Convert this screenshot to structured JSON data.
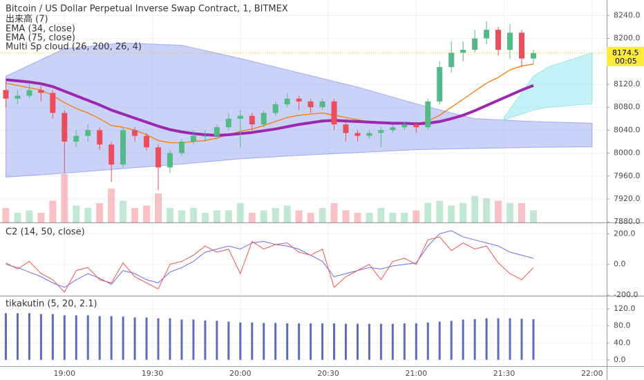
{
  "chart_data": [
    {
      "type": "candlestick",
      "title": "Bitcoin / US Dollar Perpetual Inverse Swap Contract, 1, BITMEX",
      "legend": [
        "出来高 (7)",
        "EMA (34, close)",
        "EMA (75, close)",
        "Multi Sp cloud (26, 200, 26, 4)"
      ],
      "x": [
        "18:40",
        "18:44",
        "18:48",
        "18:52",
        "18:56",
        "19:00",
        "19:04",
        "19:08",
        "19:12",
        "19:16",
        "19:20",
        "19:24",
        "19:28",
        "19:32",
        "19:36",
        "19:40",
        "19:44",
        "19:48",
        "19:52",
        "19:56",
        "20:00",
        "20:04",
        "20:08",
        "20:12",
        "20:16",
        "20:20",
        "20:24",
        "20:28",
        "20:32",
        "20:36",
        "20:40",
        "20:44",
        "20:48",
        "20:52",
        "20:56",
        "21:00",
        "21:04",
        "21:08",
        "21:12",
        "21:16",
        "21:20",
        "21:24",
        "21:28",
        "21:32",
        "21:36",
        "21:40"
      ],
      "open": [
        8110,
        8095,
        8100,
        8110,
        8105,
        8070,
        8020,
        8030,
        8040,
        8015,
        7980,
        8040,
        8030,
        8010,
        7975,
        8000,
        8020,
        8030,
        8030,
        8045,
        8060,
        8065,
        8050,
        8070,
        8085,
        8095,
        8090,
        8080,
        8090,
        8050,
        8035,
        8030,
        8035,
        8040,
        8045,
        8050,
        8045,
        8090,
        8150,
        8175,
        8180,
        8200,
        8215,
        8180,
        8210,
        8165
      ],
      "high": [
        8125,
        8110,
        8120,
        8120,
        8110,
        8075,
        8040,
        8050,
        8045,
        8020,
        8045,
        8045,
        8035,
        8015,
        8005,
        8025,
        8040,
        8040,
        8050,
        8070,
        8075,
        8070,
        8075,
        8090,
        8105,
        8100,
        8095,
        8095,
        8095,
        8055,
        8040,
        8040,
        8045,
        8050,
        8055,
        8055,
        8095,
        8160,
        8195,
        8195,
        8215,
        8230,
        8220,
        8225,
        8215,
        8180
      ],
      "low": [
        8080,
        8085,
        8095,
        8090,
        8060,
        7965,
        8010,
        8020,
        8005,
        7950,
        7975,
        8020,
        8005,
        7935,
        7965,
        7995,
        8015,
        8020,
        8025,
        8040,
        8010,
        8040,
        8045,
        8065,
        8080,
        8075,
        8070,
        8075,
        8040,
        8020,
        8020,
        8025,
        8010,
        8035,
        8040,
        8035,
        8040,
        8085,
        8140,
        8160,
        8175,
        8190,
        8170,
        8165,
        8150,
        8155
      ],
      "close": [
        8095,
        8100,
        8110,
        8105,
        8070,
        8020,
        8030,
        8040,
        8015,
        7980,
        8040,
        8030,
        8010,
        7975,
        8000,
        8020,
        8030,
        8030,
        8045,
        8060,
        8065,
        8050,
        8070,
        8085,
        8095,
        8090,
        8080,
        8090,
        8050,
        8035,
        8030,
        8035,
        8040,
        8045,
        8050,
        8045,
        8090,
        8150,
        8175,
        8180,
        8200,
        8215,
        8180,
        8210,
        8165,
        8174.5
      ],
      "volume": [
        30,
        20,
        25,
        20,
        45,
        100,
        35,
        30,
        40,
        70,
        45,
        30,
        35,
        60,
        30,
        25,
        30,
        20,
        25,
        25,
        40,
        20,
        25,
        30,
        35,
        25,
        20,
        30,
        40,
        25,
        20,
        20,
        30,
        20,
        20,
        25,
        40,
        45,
        35,
        40,
        55,
        50,
        45,
        40,
        40,
        25
      ],
      "up_color": "#53b987",
      "down_color": "#eb4d5c",
      "series": [
        {
          "color": "#f57c00",
          "values": [
            8122,
            8118,
            8114,
            8110,
            8100,
            8088,
            8078,
            8070,
            8060,
            8048,
            8045,
            8040,
            8032,
            8022,
            8018,
            8018,
            8020,
            8022,
            8026,
            8032,
            8038,
            8042,
            8048,
            8055,
            8062,
            8066,
            8068,
            8070,
            8066,
            8062,
            8058,
            8055,
            8053,
            8052,
            8052,
            8051,
            8056,
            8066,
            8080,
            8094,
            8108,
            8122,
            8132,
            8145,
            8152,
            8155
          ]
        },
        {
          "color": "#9c27b0",
          "values": [
            8128,
            8126,
            8124,
            8121,
            8116,
            8108,
            8100,
            8092,
            8084,
            8075,
            8068,
            8061,
            8054,
            8047,
            8041,
            8037,
            8034,
            8032,
            8031,
            8032,
            8034,
            8036,
            8039,
            8042,
            8046,
            8050,
            8053,
            8056,
            8057,
            8056,
            8055,
            8054,
            8053,
            8052,
            8052,
            8051,
            8052,
            8055,
            8060,
            8066,
            8074,
            8083,
            8092,
            8101,
            8110,
            8118
          ]
        }
      ],
      "clouds": [
        {
          "color": "#8c9cf0",
          "x": [
            "18:40",
            "19:00",
            "19:20",
            "19:40",
            "20:00",
            "20:20",
            "20:40",
            "21:00",
            "21:20",
            "21:40",
            "22:00"
          ],
          "upper": [
            8134,
            8182,
            8192,
            8188,
            8165,
            8140,
            8115,
            8086,
            8060,
            8055,
            8052
          ],
          "lower": [
            7958,
            7965,
            7973,
            7981,
            7990,
            7996,
            8001,
            8006,
            8008,
            8010,
            8011
          ]
        },
        {
          "color": "#7fe3ea",
          "x": [
            "21:30",
            "21:40",
            "21:45",
            "22:00"
          ],
          "upper": [
            8062,
            8134,
            8150,
            8175
          ],
          "lower": [
            8058,
            8075,
            8080,
            8086
          ]
        }
      ],
      "last_price": 8174.5,
      "countdown": "00:05",
      "xlim": [
        "18:38",
        "22:05"
      ],
      "xticks": [
        "19:00",
        "19:30",
        "20:00",
        "20:30",
        "21:00",
        "21:30",
        "22:00"
      ],
      "ylim": [
        7879,
        8267
      ],
      "yticks": [
        {
          "value": 7880,
          "label": "7880.0"
        },
        {
          "value": 7920,
          "label": "7920.0"
        },
        {
          "value": 7960,
          "label": "7960.0"
        },
        {
          "value": 8000,
          "label": "8000.0"
        },
        {
          "value": 8040,
          "label": "8040.0"
        },
        {
          "value": 8080,
          "label": "8080.0"
        },
        {
          "value": 8120,
          "label": "8120.0"
        },
        {
          "value": 8200,
          "label": "8200.0"
        },
        {
          "value": 8240,
          "label": "8240.0"
        }
      ]
    },
    {
      "type": "line",
      "title": "C2 (14, 50, close)",
      "x": [
        "18:40",
        "18:44",
        "18:48",
        "18:52",
        "18:56",
        "19:00",
        "19:04",
        "19:08",
        "19:12",
        "19:16",
        "19:20",
        "19:24",
        "19:28",
        "19:32",
        "19:36",
        "19:40",
        "19:44",
        "19:48",
        "19:52",
        "19:56",
        "20:00",
        "20:04",
        "20:08",
        "20:12",
        "20:16",
        "20:20",
        "20:24",
        "20:28",
        "20:32",
        "20:36",
        "20:40",
        "20:44",
        "20:48",
        "20:52",
        "20:56",
        "21:00",
        "21:04",
        "21:08",
        "21:12",
        "21:16",
        "21:20",
        "21:24",
        "21:28",
        "21:32",
        "21:36",
        "21:40"
      ],
      "series": [
        {
          "color": "#6a6cf5",
          "values": [
            0,
            -20,
            -50,
            -80,
            -120,
            -150,
            -100,
            -60,
            -90,
            -130,
            -40,
            -60,
            -100,
            -120,
            -50,
            -20,
            20,
            80,
            100,
            120,
            100,
            140,
            150,
            130,
            120,
            100,
            60,
            20,
            -80,
            -60,
            -40,
            -20,
            -30,
            -10,
            0,
            10,
            120,
            200,
            220,
            180,
            160,
            140,
            120,
            80,
            60,
            40
          ]
        },
        {
          "color": "#ef5350",
          "values": [
            10,
            -30,
            20,
            -60,
            -100,
            -180,
            -40,
            -20,
            -100,
            -120,
            10,
            -80,
            -120,
            -160,
            0,
            20,
            60,
            120,
            80,
            100,
            -60,
            150,
            100,
            130,
            140,
            80,
            60,
            100,
            -150,
            -80,
            -40,
            0,
            -100,
            20,
            40,
            0,
            160,
            180,
            90,
            140,
            100,
            120,
            10,
            -60,
            -100,
            -20
          ]
        }
      ],
      "ylim": [
        -204,
        269
      ],
      "yticks": [
        {
          "value": -200,
          "label": "-200.0"
        },
        {
          "value": 0,
          "label": "0.0"
        },
        {
          "value": 200,
          "label": "200.0"
        }
      ]
    },
    {
      "type": "bar",
      "title": "tikakutin (5, 20, 2.1)",
      "x": [
        "18:40",
        "18:44",
        "18:48",
        "18:52",
        "18:56",
        "19:00",
        "19:04",
        "19:08",
        "19:12",
        "19:16",
        "19:20",
        "19:24",
        "19:28",
        "19:32",
        "19:36",
        "19:40",
        "19:44",
        "19:48",
        "19:52",
        "19:56",
        "20:00",
        "20:04",
        "20:08",
        "20:12",
        "20:16",
        "20:20",
        "20:24",
        "20:28",
        "20:32",
        "20:36",
        "20:40",
        "20:44",
        "20:48",
        "20:52",
        "20:56",
        "21:00",
        "21:04",
        "21:08",
        "21:12",
        "21:16",
        "21:20",
        "21:24",
        "21:28",
        "21:32",
        "21:36",
        "21:40"
      ],
      "values": [
        110,
        110,
        110,
        108,
        108,
        105,
        105,
        105,
        103,
        103,
        102,
        100,
        100,
        98,
        98,
        95,
        95,
        93,
        92,
        90,
        88,
        88,
        87,
        87,
        86,
        86,
        86,
        86,
        86,
        85,
        85,
        85,
        85,
        85,
        86,
        86,
        88,
        90,
        92,
        95,
        96,
        98,
        98,
        98,
        97,
        96
      ],
      "color": "#5c6bc0",
      "ylim": [
        -15,
        148
      ],
      "yticks": [
        {
          "value": 0,
          "label": "0.0"
        },
        {
          "value": 40,
          "label": "40.0"
        },
        {
          "value": 80,
          "label": "80.0"
        },
        {
          "value": 120,
          "label": "120.0"
        }
      ]
    }
  ]
}
